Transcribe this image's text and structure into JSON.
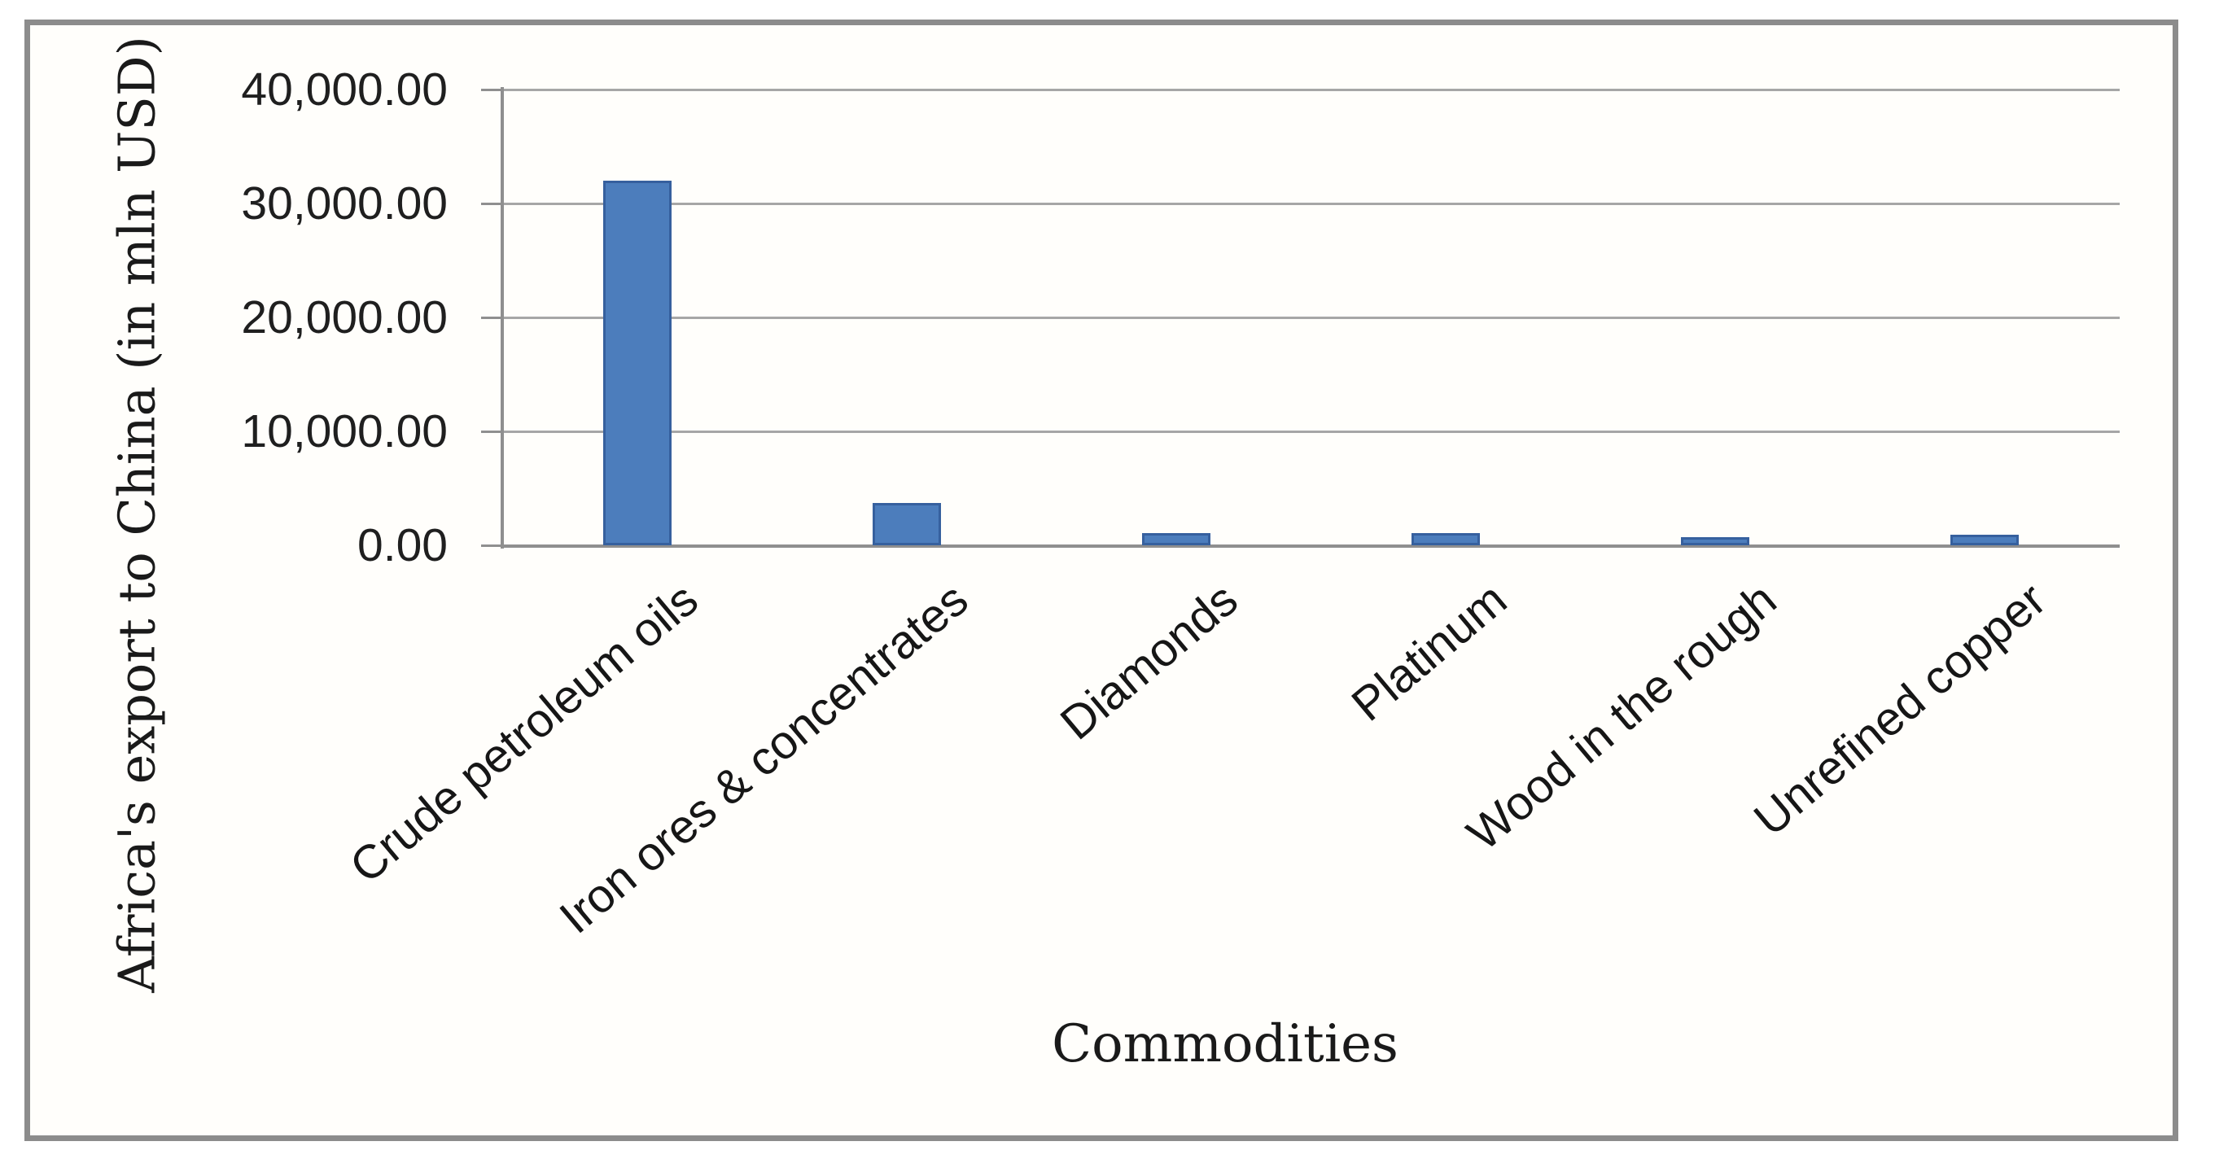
{
  "chart_data": {
    "type": "bar",
    "categories": [
      "Crude petroleum oils",
      "Iron ores & concentrates",
      "Diamonds",
      "Platinum",
      "Wood in the rough",
      "Unrefined copper"
    ],
    "values": [
      32000,
      3700,
      1100,
      1100,
      700,
      950
    ],
    "series_name": "Africa's export to China",
    "title": "",
    "xlabel": "Commodities",
    "ylabel": "Africa's export to China (in mln USD)",
    "ylim": [
      0,
      40000
    ],
    "ytick_interval": 10000,
    "ytick_labels": [
      "0.00",
      "10,000.00",
      "20,000.00",
      "30,000.00",
      "40,000.00"
    ],
    "grid": true,
    "legend": false,
    "bar_color": "#4c7dbc",
    "bar_border_color": "#36609e",
    "gridline_color": "#a6a6a6",
    "axis_color": "#8f8f8f",
    "frame_color": "#8c8c8c",
    "text_color": "#1f1f1f"
  }
}
